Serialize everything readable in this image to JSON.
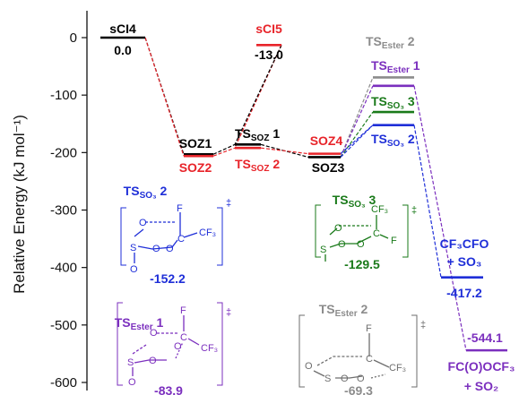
{
  "chart_data": {
    "type": "energy-diagram",
    "title": "",
    "ylabel": "Relative Energy (kJ mol⁻¹)",
    "ylim": [
      -600,
      0
    ],
    "yticks": [
      "0",
      "-100",
      "-200",
      "-300",
      "-400",
      "-500",
      "-600"
    ],
    "levels": [
      {
        "id": "sCI4",
        "label": "sCI4",
        "value_label": "0.0",
        "energy": 0.0,
        "color": "#000000"
      },
      {
        "id": "SOZ1",
        "label": "SOZ1",
        "energy": -203,
        "color": "#000000"
      },
      {
        "id": "SOZ2",
        "label": "SOZ2",
        "energy": -206,
        "color": "#e8242a"
      },
      {
        "id": "TSsoz1",
        "label_main": "TS",
        "label_sub": "SOZ",
        "label_num": " 1",
        "energy": -186,
        "color": "#000000"
      },
      {
        "id": "TSsoz2",
        "label_main": "TS",
        "label_sub": "SOZ",
        "label_num": " 2",
        "energy": -192,
        "color": "#e8242a"
      },
      {
        "id": "sCI5",
        "label": "sCI5",
        "value_label": "-13.0",
        "energy": -13.0,
        "color": "#e8242a"
      },
      {
        "id": "SOZ4",
        "label": "SOZ4",
        "energy": -202,
        "color": "#e8242a"
      },
      {
        "id": "SOZ3",
        "label": "SOZ3",
        "energy": -208,
        "color": "#000000"
      },
      {
        "id": "TSester2",
        "label_main": "TS",
        "label_sub": "Ester",
        "label_num": " 2",
        "value_label": "-69.3",
        "energy": -69.3,
        "color": "#8c8c8c"
      },
      {
        "id": "TSester1",
        "label_main": "TS",
        "label_sub": "Ester",
        "label_num": " 1",
        "value_label": "-83.9",
        "energy": -83.9,
        "color": "#7b2fbe"
      },
      {
        "id": "TSso3_3",
        "label_main": "TS",
        "label_sub": "SO₃",
        "label_num": " 3",
        "value_label": "-129.5",
        "energy": -129.5,
        "color": "#1a7a1a"
      },
      {
        "id": "TSso3_2",
        "label_main": "TS",
        "label_sub": "SO₃",
        "label_num": " 2",
        "value_label": "-152.2",
        "energy": -152.2,
        "color": "#1f2fd8"
      },
      {
        "id": "CF3CFO",
        "label_line1": "CF₃CFO",
        "label_line2": "+ SO₃",
        "value_label": "-417.2",
        "energy": -417.2,
        "color": "#1f2fd8"
      },
      {
        "id": "FCOOCF3",
        "label_line1": "FC(O)OCF₃",
        "label_line2": "+ SO₂",
        "value_label": "-544.1",
        "energy": -544.1,
        "color": "#7b2fbe"
      }
    ],
    "structures": {
      "ts_so3_2": {
        "atoms": [
          "F",
          "CF₃",
          "O",
          "O",
          "O",
          "S",
          "O",
          "C"
        ],
        "value": "-152.2"
      },
      "ts_so3_3": {
        "atoms": [
          "CF₃",
          "O",
          "F",
          "S",
          "O",
          "O",
          "C"
        ],
        "value": "-129.5"
      },
      "ts_ester_1": {
        "atoms": [
          "F",
          "O",
          "CF₃",
          "O",
          "S",
          "O",
          "O",
          "C"
        ],
        "value": "-83.9"
      },
      "ts_ester_2": {
        "atoms": [
          "F",
          "O",
          "S",
          "O",
          "O",
          "C",
          "CF₃"
        ],
        "value": "-69.3"
      },
      "ts_mark": "‡"
    }
  }
}
